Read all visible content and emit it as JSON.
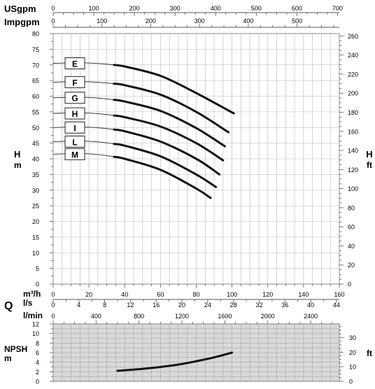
{
  "chart_data": [
    {
      "type": "line",
      "title": "",
      "xlabel": "m³/h",
      "ylabel": "H m",
      "ylabel_right": "H ft",
      "xlim": [
        0,
        160
      ],
      "ylim": [
        0,
        80
      ],
      "ylim_right": [
        0,
        260
      ],
      "grid": true,
      "axis_ticks": {
        "usgpm": [
          "0",
          "100",
          "200",
          "300",
          "400",
          "500",
          "600",
          "700"
        ],
        "impgpm": [
          "0",
          "100",
          "200",
          "300",
          "400",
          "500"
        ],
        "h_m": [
          "0",
          "5",
          "10",
          "15",
          "20",
          "25",
          "30",
          "35",
          "40",
          "45",
          "50",
          "55",
          "60",
          "65",
          "70",
          "75",
          "80"
        ],
        "h_ft": [
          "0",
          "20",
          "40",
          "60",
          "80",
          "100",
          "120",
          "140",
          "160",
          "180",
          "200",
          "220",
          "240",
          "260"
        ],
        "m3h": [
          "0",
          "20",
          "40",
          "60",
          "80",
          "100",
          "120",
          "140",
          "160"
        ],
        "ls": [
          "0",
          "4",
          "8",
          "12",
          "16",
          "20",
          "24",
          "28",
          "32",
          "36",
          "40",
          "44"
        ],
        "lmin": [
          "0",
          "400",
          "800",
          "1200",
          "1600",
          "2000",
          "2400"
        ]
      },
      "unit_labels": {
        "usgpm": "USgpm",
        "impgpm": "Impgpm",
        "h_left": "H",
        "m_left": "m",
        "h_right": "H",
        "ft_right": "ft",
        "q": "Q",
        "m3h": "m³/h",
        "ls": "l/s",
        "lmin": "l/min"
      },
      "series": [
        {
          "name": "E",
          "x": [
            0,
            20,
            40,
            60,
            80,
            101
          ],
          "y": [
            70.5,
            70.6,
            69.5,
            66.5,
            61,
            54.5
          ]
        },
        {
          "name": "F",
          "x": [
            0,
            20,
            40,
            60,
            80,
            98
          ],
          "y": [
            64.5,
            64.6,
            63.5,
            60.5,
            55,
            48.5
          ]
        },
        {
          "name": "G",
          "x": [
            0,
            20,
            40,
            60,
            80,
            96
          ],
          "y": [
            59.5,
            59.6,
            58.3,
            55.3,
            49.8,
            44
          ]
        },
        {
          "name": "H",
          "x": [
            0,
            20,
            40,
            60,
            80,
            95
          ],
          "y": [
            54.5,
            54.6,
            53.3,
            50.3,
            45,
            39.5
          ]
        },
        {
          "name": "I",
          "x": [
            0,
            20,
            40,
            60,
            80,
            93
          ],
          "y": [
            50,
            50.1,
            48.8,
            45.5,
            40,
            35
          ]
        },
        {
          "name": "L",
          "x": [
            0,
            20,
            40,
            60,
            80,
            91
          ],
          "y": [
            45.5,
            45.6,
            44.2,
            40.8,
            35,
            31
          ]
        },
        {
          "name": "M",
          "x": [
            0,
            20,
            40,
            60,
            80,
            88
          ],
          "y": [
            41.5,
            41.6,
            40,
            36.5,
            30.5,
            27.5
          ]
        }
      ]
    },
    {
      "type": "line",
      "title": "",
      "xlabel": "m³/h",
      "ylabel": "NPSH m",
      "ylabel_right": "ft",
      "xlim": [
        0,
        160
      ],
      "ylim": [
        0,
        12
      ],
      "ylim_right": [
        0,
        39.4
      ],
      "grid": true,
      "axis_ticks": {
        "npsh_m": [
          "0",
          "2",
          "4",
          "6",
          "8",
          "10",
          "12"
        ],
        "npsh_ft": [
          "0",
          "10",
          "20",
          "30"
        ]
      },
      "unit_labels": {
        "npsh": "NPSH",
        "m": "m",
        "ft": "ft"
      },
      "series": [
        {
          "name": "NPSH",
          "x": [
            36,
            50,
            60,
            70,
            80,
            90,
            100
          ],
          "y": [
            2.2,
            2.6,
            3.0,
            3.5,
            4.2,
            5.0,
            6.0
          ]
        }
      ]
    }
  ]
}
